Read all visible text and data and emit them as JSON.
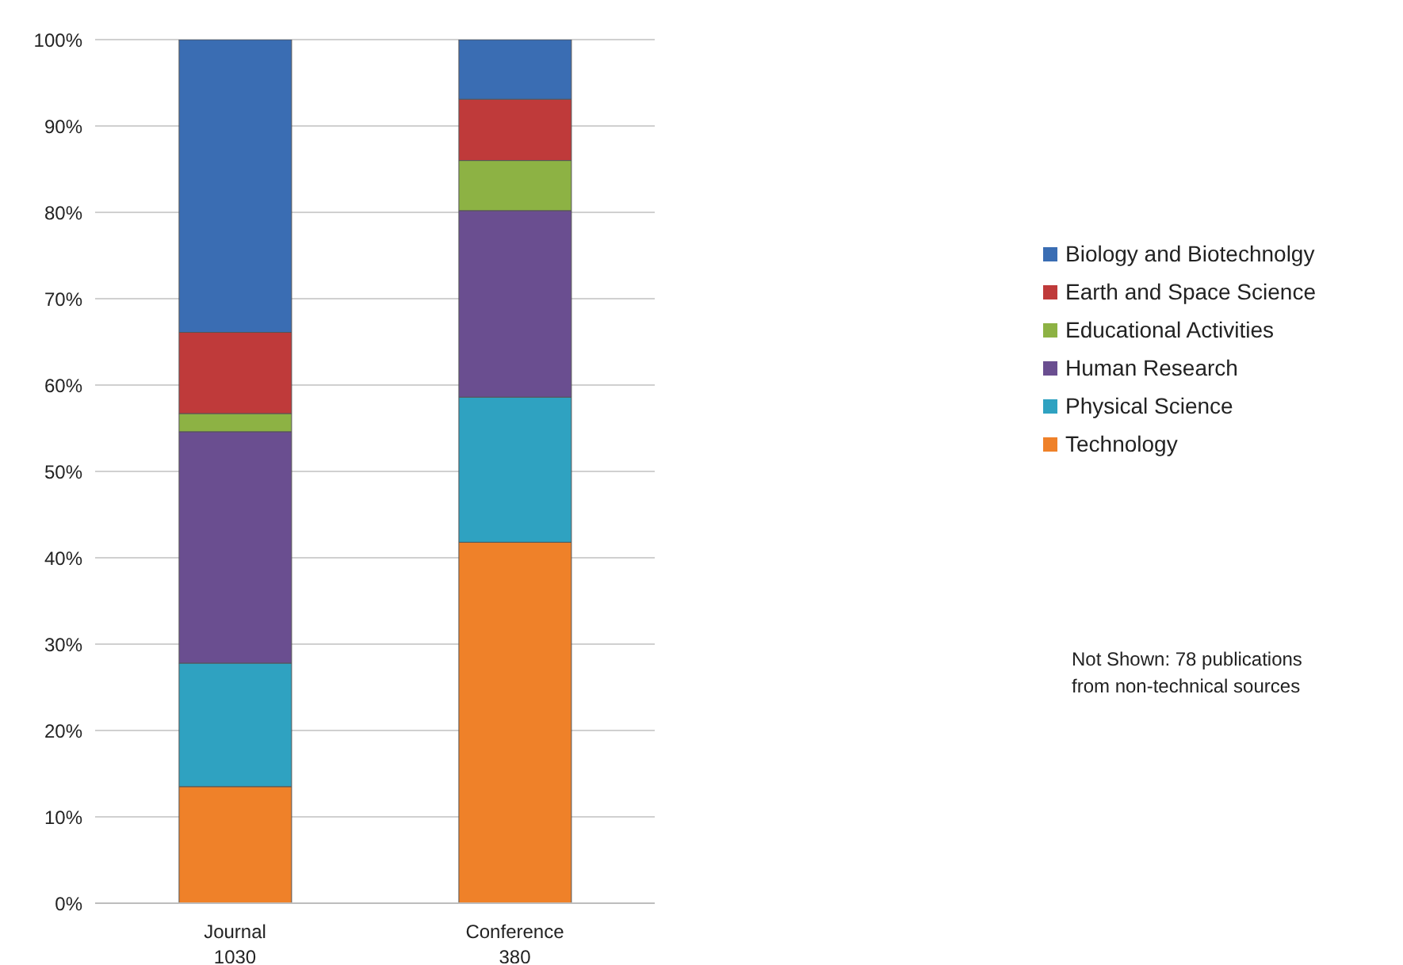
{
  "chart_data": {
    "type": "bar",
    "stacked": true,
    "categories": [
      "Journal\n1030",
      "Conference\n380"
    ],
    "series": [
      {
        "name": "Technology",
        "color": "#ef8129",
        "values": [
          13.5,
          41.8
        ]
      },
      {
        "name": "Physical Science",
        "color": "#2fa2c1",
        "values": [
          14.3,
          16.8
        ]
      },
      {
        "name": "Human Research",
        "color": "#6a4e90",
        "values": [
          26.8,
          21.6
        ]
      },
      {
        "name": "Educational Activities",
        "color": "#8db244",
        "values": [
          2.1,
          5.8
        ]
      },
      {
        "name": "Earth and Space Science",
        "color": "#bf3a3a",
        "values": [
          9.4,
          7.1
        ]
      },
      {
        "name": "Biology and Biotechnolgy",
        "color": "#3a6db3",
        "values": [
          33.9,
          6.9
        ]
      }
    ],
    "ylim": [
      0,
      100
    ],
    "yticks": [
      {
        "value": 0,
        "label": "0%"
      },
      {
        "value": 10,
        "label": "10%"
      },
      {
        "value": 20,
        "label": "20%"
      },
      {
        "value": 30,
        "label": "30%"
      },
      {
        "value": 40,
        "label": "40%"
      },
      {
        "value": 50,
        "label": "50%"
      },
      {
        "value": 60,
        "label": "60%"
      },
      {
        "value": 70,
        "label": "70%"
      },
      {
        "value": 80,
        "label": "80%"
      },
      {
        "value": 90,
        "label": "90%"
      },
      {
        "value": 100,
        "label": "100%"
      }
    ],
    "grid": "y",
    "legend": "right",
    "annotations": [
      "Not Shown: 78 publications\nfrom non-technical sources"
    ]
  }
}
